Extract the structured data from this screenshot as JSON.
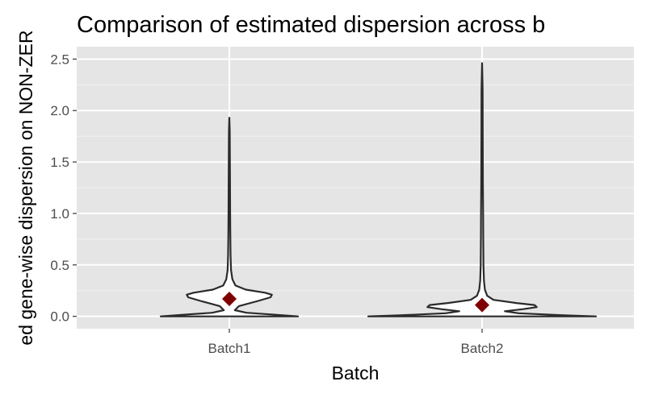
{
  "chart_data": {
    "type": "violin",
    "title": "Comparison of estimated dispersion across b",
    "xlabel": "Batch",
    "ylabel": "ed gene-wise dispersion on NON-ZER",
    "categories": [
      "Batch1",
      "Batch2"
    ],
    "ylim": [
      -0.12,
      2.62
    ],
    "yticks": [
      "0.0",
      "0.5",
      "1.0",
      "1.5",
      "2.0",
      "2.5"
    ],
    "ytick_values": [
      0,
      0.5,
      1.0,
      1.5,
      2.0,
      2.5
    ],
    "grid": true,
    "panel_background": "#e5e5e5",
    "violin_outline_color": "#2b2b2b",
    "violin_fill": "#ffffff",
    "mean_marker_color": "#7f0000",
    "mean_marker_shape": "diamond",
    "series": [
      {
        "category": "Batch1",
        "max": 1.93,
        "mean": 0.17,
        "profile": [
          [
            0.0,
            1.0
          ],
          [
            0.015,
            0.7
          ],
          [
            0.035,
            0.25
          ],
          [
            0.06,
            0.08
          ],
          [
            0.1,
            0.14
          ],
          [
            0.15,
            0.42
          ],
          [
            0.185,
            0.6
          ],
          [
            0.21,
            0.62
          ],
          [
            0.23,
            0.52
          ],
          [
            0.26,
            0.24
          ],
          [
            0.3,
            0.09
          ],
          [
            0.36,
            0.045
          ],
          [
            0.45,
            0.025
          ],
          [
            0.6,
            0.018
          ],
          [
            0.8,
            0.014
          ],
          [
            1.0,
            0.012
          ],
          [
            1.2,
            0.01
          ],
          [
            1.5,
            0.008
          ],
          [
            1.8,
            0.006
          ],
          [
            1.93,
            0.0
          ]
        ]
      },
      {
        "category": "Batch2",
        "max": 2.46,
        "mean": 0.11,
        "profile": [
          [
            0.0,
            1.0
          ],
          [
            0.01,
            0.72
          ],
          [
            0.03,
            0.32
          ],
          [
            0.05,
            0.2
          ],
          [
            0.07,
            0.36
          ],
          [
            0.09,
            0.48
          ],
          [
            0.11,
            0.46
          ],
          [
            0.13,
            0.3
          ],
          [
            0.16,
            0.1
          ],
          [
            0.2,
            0.045
          ],
          [
            0.26,
            0.025
          ],
          [
            0.35,
            0.016
          ],
          [
            0.5,
            0.012
          ],
          [
            0.8,
            0.01
          ],
          [
            1.0,
            0.009
          ],
          [
            1.3,
            0.007
          ],
          [
            1.8,
            0.006
          ],
          [
            2.2,
            0.005
          ],
          [
            2.46,
            0.0
          ]
        ]
      }
    ]
  }
}
